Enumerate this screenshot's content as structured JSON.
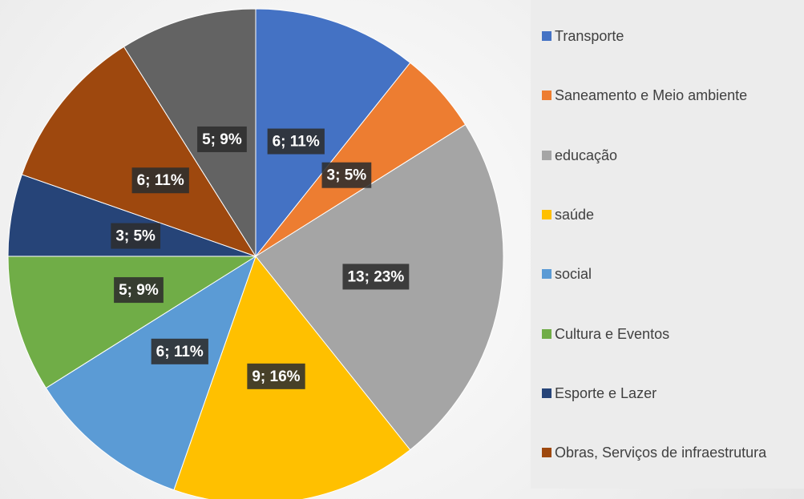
{
  "chart_data": {
    "type": "pie",
    "categories": [
      "Transporte",
      "Saneamento e Meio ambiente",
      "educação",
      "saúde",
      "social",
      "Cultura e Eventos",
      "Esporte e Lazer",
      "Obras, Serviços de infraestrutura",
      null
    ],
    "values": [
      6,
      3,
      13,
      9,
      6,
      5,
      3,
      6,
      5
    ],
    "value_labels": [
      "6; 11%",
      "3; 5%",
      "13; 23%",
      "9; 16%",
      "6; 11%",
      "5; 9%",
      "3; 5%",
      "6; 11%",
      "5; 9%"
    ],
    "colors": [
      "#4472c4",
      "#ed7d31",
      "#a5a5a5",
      "#ffc000",
      "#5b9bd5",
      "#70ad47",
      "#264478",
      "#9e480e",
      "#636363"
    ],
    "legend": "right"
  }
}
